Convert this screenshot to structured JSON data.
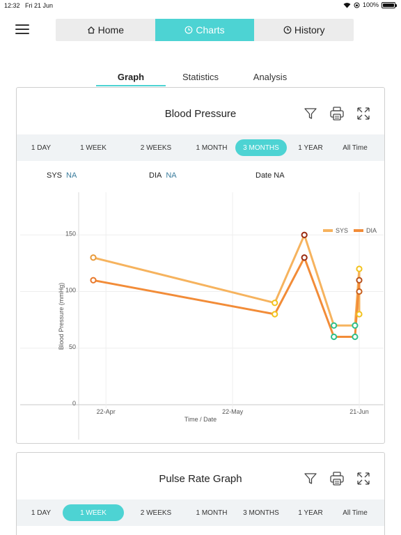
{
  "status": {
    "time": "12:32",
    "date": "Fri 21 Jun",
    "battery": "100%"
  },
  "nav": {
    "tabs": [
      {
        "label": "Home",
        "icon": "home-icon"
      },
      {
        "label": "Charts",
        "icon": "clock-icon"
      },
      {
        "label": "History",
        "icon": "history-icon"
      }
    ],
    "active_tab": "Charts"
  },
  "sub_tabs": {
    "items": [
      "Graph",
      "Statistics",
      "Analysis"
    ],
    "active": "Graph"
  },
  "bp_card": {
    "title": "Blood Pressure",
    "ranges": [
      "1 DAY",
      "1 WEEK",
      "2 WEEKS",
      "1 MONTH",
      "3 MONTHS",
      "1 YEAR",
      "All Time"
    ],
    "active_range": "3 MONTHS",
    "readout": {
      "sys_label": "SYS",
      "sys_value": "NA",
      "dia_label": "DIA",
      "dia_value": "NA",
      "date_label": "Date NA"
    }
  },
  "pulse_card": {
    "title": "Pulse Rate Graph",
    "ranges": [
      "1 DAY",
      "1 WEEK",
      "2 WEEKS",
      "1 MONTH",
      "3 MONTHS",
      "1 YEAR",
      "All Time"
    ],
    "active_range": "1 WEEK"
  },
  "chart_data": {
    "type": "line",
    "xlabel": "Time / Date",
    "ylabel": "Blood Pressure (mmHg)",
    "ylim": [
      0,
      180
    ],
    "x_range": [
      "2024-04-16",
      "2024-06-23"
    ],
    "yticks": [
      0,
      50,
      100,
      150
    ],
    "xticks": [
      {
        "date": "2024-04-22",
        "label": "22-Apr"
      },
      {
        "date": "2024-05-22",
        "label": "22-May"
      },
      {
        "date": "2024-06-21",
        "label": "21-Jun"
      }
    ],
    "grid": true,
    "legend_position": "top-right",
    "series": [
      {
        "name": "SYS",
        "color": "#f6b35e",
        "points": [
          {
            "date": "2024-04-19",
            "value": 130,
            "marker": "#e89a3a"
          },
          {
            "date": "2024-06-01",
            "value": 90,
            "marker": "#f2c21b"
          },
          {
            "date": "2024-06-08",
            "value": 150,
            "marker": "#9a2a10"
          },
          {
            "date": "2024-06-15",
            "value": 70,
            "marker": "#2ec08a"
          },
          {
            "date": "2024-06-20",
            "value": 70,
            "marker": "#2ec08a"
          },
          {
            "date": "2024-06-21",
            "value": 120,
            "marker": "#f2c21b"
          },
          {
            "date": "2024-06-21",
            "value": 80,
            "marker": "#f2c21b"
          }
        ]
      },
      {
        "name": "DIA",
        "color": "#f28c38",
        "points": [
          {
            "date": "2024-04-19",
            "value": 110,
            "marker": "#e8782a"
          },
          {
            "date": "2024-06-01",
            "value": 80,
            "marker": "#f2c21b"
          },
          {
            "date": "2024-06-08",
            "value": 130,
            "marker": "#9a2a10"
          },
          {
            "date": "2024-06-15",
            "value": 60,
            "marker": "#2ec08a"
          },
          {
            "date": "2024-06-20",
            "value": 60,
            "marker": "#2ec08a"
          },
          {
            "date": "2024-06-21",
            "value": 110,
            "marker": "#b8501a"
          },
          {
            "date": "2024-06-21",
            "value": 100,
            "marker": "#c8601e"
          }
        ]
      }
    ]
  },
  "colors": {
    "accent": "#4dd3d3",
    "value_text": "#3a7c9c"
  }
}
